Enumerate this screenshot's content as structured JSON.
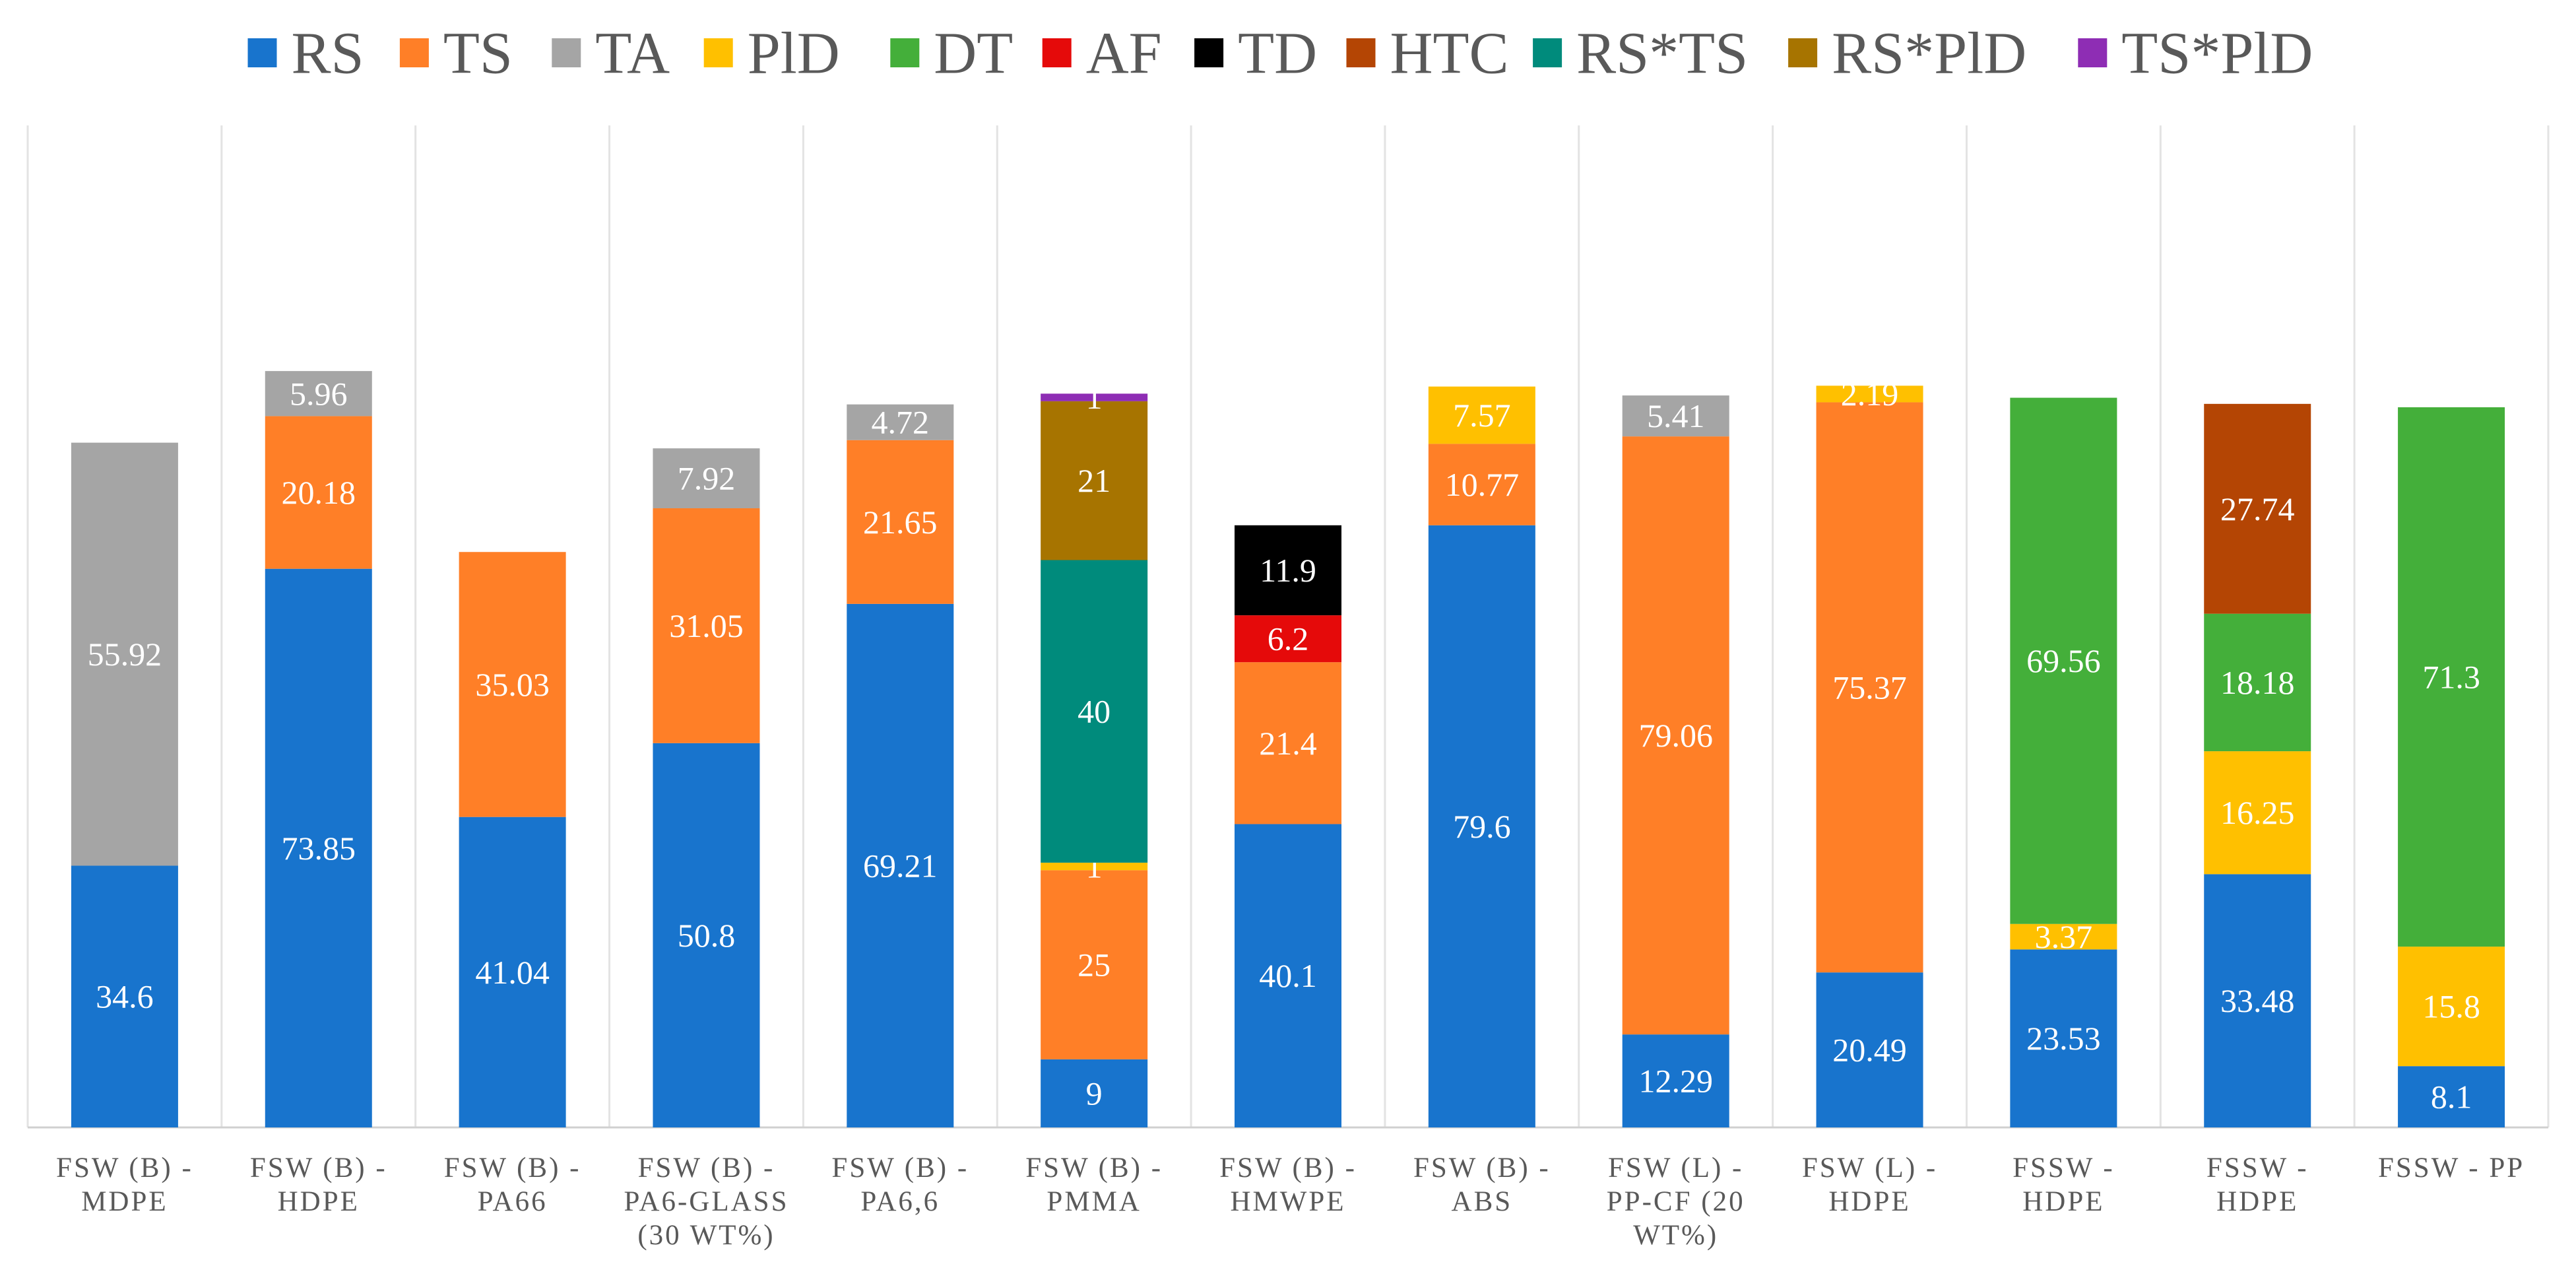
{
  "chart_data": {
    "type": "bar",
    "stacked": true,
    "title": "",
    "xlabel": "",
    "ylabel": "",
    "ylim": [
      0,
      100
    ],
    "grid": false,
    "legend_position": "top",
    "categories": [
      [
        "FSW (B) -",
        "MDPE"
      ],
      [
        "FSW (B) -",
        "HDPE"
      ],
      [
        "FSW (B) -",
        "PA66"
      ],
      [
        "FSW (B) -",
        "PA6-GLASS",
        "(30 WT%)"
      ],
      [
        "FSW (B) -",
        "PA6,6"
      ],
      [
        "FSW (B) -",
        "PMMA"
      ],
      [
        "FSW (B) -",
        "HMWPE"
      ],
      [
        "FSW (B) -",
        "ABS"
      ],
      [
        "FSW (L) -",
        "PP-CF (20",
        "WT%)"
      ],
      [
        "FSW (L) -",
        "HDPE"
      ],
      [
        "FSSW -",
        "HDPE"
      ],
      [
        "FSSW -",
        "HDPE"
      ],
      [
        "FSSW - PP"
      ]
    ],
    "series": [
      {
        "name": "RS",
        "color": "#1874CD",
        "values": [
          34.6,
          73.85,
          41.04,
          50.8,
          69.21,
          9,
          40.1,
          79.6,
          12.29,
          20.49,
          23.53,
          33.48,
          8.1
        ]
      },
      {
        "name": "TS",
        "color": "#FF7F27",
        "values": [
          null,
          20.18,
          35.03,
          31.05,
          21.65,
          25,
          21.4,
          10.77,
          79.06,
          75.37,
          null,
          null,
          null
        ]
      },
      {
        "name": "TA",
        "color": "#A5A5A5",
        "values": [
          55.92,
          5.96,
          null,
          7.92,
          4.72,
          null,
          null,
          null,
          5.41,
          null,
          null,
          null,
          null
        ]
      },
      {
        "name": "PlD",
        "color": "#FFC000",
        "values": [
          null,
          null,
          null,
          null,
          null,
          1,
          null,
          7.57,
          null,
          2.19,
          3.37,
          16.25,
          15.8
        ]
      },
      {
        "name": "DT",
        "color": "#44AF3A",
        "values": [
          null,
          null,
          null,
          null,
          null,
          null,
          null,
          null,
          null,
          null,
          69.56,
          18.18,
          71.3
        ]
      },
      {
        "name": "AF",
        "color": "#E50A0A",
        "values": [
          null,
          null,
          null,
          null,
          null,
          null,
          6.2,
          null,
          null,
          null,
          null,
          null,
          null
        ]
      },
      {
        "name": "TD",
        "color": "#000000",
        "values": [
          null,
          null,
          null,
          null,
          null,
          null,
          11.9,
          null,
          null,
          null,
          null,
          null,
          null
        ]
      },
      {
        "name": "HTC",
        "color": "#B44504",
        "values": [
          null,
          null,
          null,
          null,
          null,
          null,
          null,
          null,
          null,
          null,
          null,
          27.74,
          null
        ]
      },
      {
        "name": "RS*TS",
        "color": "#008B7C",
        "values": [
          null,
          null,
          null,
          null,
          null,
          40,
          null,
          null,
          null,
          null,
          null,
          null,
          null
        ]
      },
      {
        "name": "RS*PlD",
        "color": "#A77400",
        "values": [
          null,
          null,
          null,
          null,
          null,
          21,
          null,
          null,
          null,
          null,
          null,
          null,
          null
        ]
      },
      {
        "name": "TS*PlD",
        "color": "#8E2DB4",
        "values": [
          null,
          null,
          null,
          null,
          null,
          1,
          null,
          null,
          null,
          null,
          null,
          null,
          null
        ]
      }
    ]
  }
}
